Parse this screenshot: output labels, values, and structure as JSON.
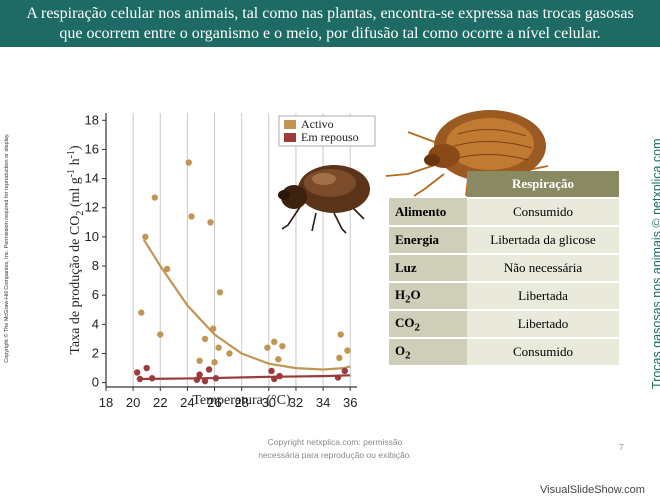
{
  "banner": {
    "line1": "A respiração celular nos animais, tal como nas plantas, encontra-se expressa nas trocas gasosas",
    "line2": "que ocorrem entre o organismo e o meio, por difusão tal como ocorre a nível celular."
  },
  "side_left_text": "Copyright © The McGraw-Hill Companies, Inc. Permission required for reproduction or display.",
  "side_right_text": "Trocas gasosas nos animais © netxplica.com",
  "chart_data": {
    "type": "scatter",
    "xlabel": "Temperatura (°C)",
    "ylabel_main": "Taxa de produção de CO",
    "ylabel_sub": "2",
    "ylabel_units": " (ml g",
    "ylabel_exp1": "-1",
    "ylabel_mid": " h",
    "ylabel_exp2": "-1",
    "ylabel_end": ")",
    "xlim": [
      18,
      36.5
    ],
    "ylim": [
      -0.3,
      18.5
    ],
    "x_ticks": [
      18,
      20,
      22,
      24,
      26,
      28,
      30,
      32,
      34,
      36
    ],
    "y_ticks": [
      0,
      2,
      4,
      6,
      8,
      10,
      12,
      14,
      16,
      18
    ],
    "grid": "vertical",
    "legend_position": "top-right",
    "series": [
      {
        "name": "Activo",
        "color": "#c39552",
        "points": [
          [
            20.6,
            4.8
          ],
          [
            20.9,
            10.0
          ],
          [
            21.6,
            12.7
          ],
          [
            22.0,
            3.3
          ],
          [
            22.5,
            7.8
          ],
          [
            24.1,
            15.1
          ],
          [
            24.3,
            11.4
          ],
          [
            24.9,
            1.5
          ],
          [
            25.3,
            3.0
          ],
          [
            25.7,
            11.0
          ],
          [
            25.9,
            3.7
          ],
          [
            26.0,
            1.4
          ],
          [
            26.3,
            2.4
          ],
          [
            26.4,
            6.2
          ],
          [
            27.1,
            2.0
          ],
          [
            29.9,
            2.4
          ],
          [
            30.4,
            2.8
          ],
          [
            30.7,
            1.6
          ],
          [
            31.0,
            2.5
          ],
          [
            35.2,
            1.7
          ],
          [
            35.3,
            3.3
          ],
          [
            35.8,
            2.2
          ]
        ],
        "trend": [
          [
            20.8,
            9.8
          ],
          [
            22.0,
            8.0
          ],
          [
            24.0,
            5.3
          ],
          [
            26.0,
            3.3
          ],
          [
            28.0,
            2.0
          ],
          [
            30.0,
            1.3
          ],
          [
            32.0,
            1.0
          ],
          [
            34.0,
            0.9
          ],
          [
            35.5,
            1.0
          ],
          [
            36.0,
            1.1
          ]
        ]
      },
      {
        "name": "Em repouso",
        "color": "#9b3b3b",
        "points": [
          [
            20.3,
            0.7
          ],
          [
            20.5,
            0.25
          ],
          [
            21.0,
            1.0
          ],
          [
            21.4,
            0.3
          ],
          [
            24.7,
            0.2
          ],
          [
            24.9,
            0.55
          ],
          [
            25.3,
            0.1
          ],
          [
            25.6,
            0.9
          ],
          [
            26.1,
            0.3
          ],
          [
            30.2,
            0.8
          ],
          [
            30.4,
            0.25
          ],
          [
            30.8,
            0.45
          ],
          [
            35.1,
            0.35
          ],
          [
            35.6,
            0.8
          ]
        ],
        "trend": [
          [
            20.3,
            0.25
          ],
          [
            25.0,
            0.3
          ],
          [
            30.0,
            0.4
          ],
          [
            34.0,
            0.45
          ],
          [
            36.0,
            0.5
          ]
        ]
      }
    ]
  },
  "table": {
    "header": "Respiração",
    "rows": [
      {
        "label": "Alimento",
        "value": "Consumido"
      },
      {
        "label": "Energia",
        "value": "Libertada da glicose"
      },
      {
        "label": "Luz",
        "value": "Não necessária"
      },
      {
        "label": "H",
        "label_sub": "2",
        "label_after": "O",
        "value": "Libertada"
      },
      {
        "label": "CO",
        "label_sub": "2",
        "label_after": "",
        "value": "Libertado"
      },
      {
        "label": "O",
        "label_sub": "2",
        "label_after": "",
        "value": "Consumido"
      }
    ]
  },
  "footer": {
    "line1": "Copyright netxplica.com: permissão",
    "line2": "necessária para reprodução ou exibição."
  },
  "page_number": "7",
  "watermark": "VisualSlideShow.com"
}
